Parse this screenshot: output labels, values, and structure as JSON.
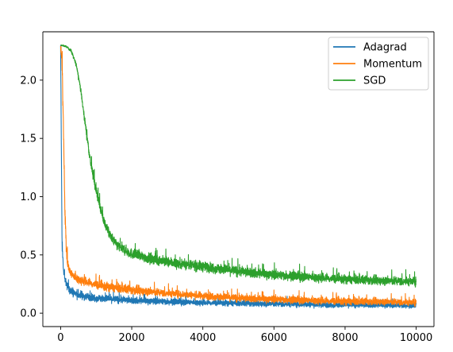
{
  "chart_data": {
    "type": "line",
    "title": "",
    "xlabel": "",
    "ylabel": "",
    "xlim": [
      -500,
      10500
    ],
    "ylim": [
      -0.115,
      2.415
    ],
    "x_ticks": [
      0,
      2000,
      4000,
      6000,
      8000,
      10000
    ],
    "x_tick_labels": [
      "0",
      "2000",
      "4000",
      "6000",
      "8000",
      "10000"
    ],
    "y_ticks": [
      0.0,
      0.5,
      1.0,
      1.5,
      2.0
    ],
    "y_tick_labels": [
      "0.0",
      "0.5",
      "1.0",
      "1.5",
      "2.0"
    ],
    "grid": false,
    "legend_position": "top-right",
    "series": [
      {
        "name": "Adagrad",
        "color": "#1f77b4",
        "x": [
          0,
          40,
          80,
          150,
          250,
          400,
          600,
          800,
          1000,
          1500,
          2000,
          3000,
          4000,
          5000,
          6000,
          7000,
          8000,
          9000,
          10000
        ],
        "y": [
          2.28,
          0.62,
          0.38,
          0.26,
          0.2,
          0.17,
          0.15,
          0.14,
          0.13,
          0.12,
          0.11,
          0.1,
          0.09,
          0.085,
          0.08,
          0.075,
          0.07,
          0.07,
          0.065
        ],
        "spread": [
          0.05,
          0.1,
          0.09,
          0.08,
          0.07,
          0.06,
          0.06,
          0.05,
          0.05,
          0.05,
          0.045,
          0.045,
          0.04,
          0.04,
          0.04,
          0.04,
          0.035,
          0.035,
          0.035
        ]
      },
      {
        "name": "Momentum",
        "color": "#ff7f0e",
        "x": [
          0,
          40,
          80,
          120,
          160,
          200,
          250,
          350,
          500,
          800,
          1200,
          2000,
          3000,
          4000,
          5000,
          6000,
          7000,
          8000,
          9000,
          10000
        ],
        "y": [
          2.28,
          2.15,
          1.6,
          0.9,
          0.55,
          0.42,
          0.36,
          0.32,
          0.29,
          0.26,
          0.23,
          0.2,
          0.17,
          0.15,
          0.13,
          0.12,
          0.11,
          0.1,
          0.1,
          0.09
        ],
        "spread": [
          0.05,
          0.1,
          0.1,
          0.1,
          0.09,
          0.08,
          0.07,
          0.07,
          0.06,
          0.06,
          0.06,
          0.06,
          0.05,
          0.05,
          0.05,
          0.05,
          0.05,
          0.05,
          0.045,
          0.045
        ]
      },
      {
        "name": "SGD",
        "color": "#2ca02c",
        "x": [
          0,
          150,
          300,
          450,
          550,
          650,
          750,
          850,
          1000,
          1200,
          1400,
          1600,
          1800,
          2000,
          2500,
          3000,
          4000,
          5000,
          6000,
          7000,
          8000,
          9000,
          10000
        ],
        "y": [
          2.3,
          2.29,
          2.25,
          2.12,
          1.95,
          1.72,
          1.5,
          1.28,
          1.05,
          0.8,
          0.66,
          0.58,
          0.54,
          0.51,
          0.47,
          0.44,
          0.4,
          0.36,
          0.33,
          0.31,
          0.29,
          0.28,
          0.27
        ],
        "spread": [
          0.01,
          0.01,
          0.02,
          0.03,
          0.04,
          0.05,
          0.06,
          0.07,
          0.07,
          0.07,
          0.07,
          0.07,
          0.07,
          0.07,
          0.07,
          0.07,
          0.07,
          0.07,
          0.065,
          0.065,
          0.06,
          0.06,
          0.06
        ]
      }
    ]
  }
}
